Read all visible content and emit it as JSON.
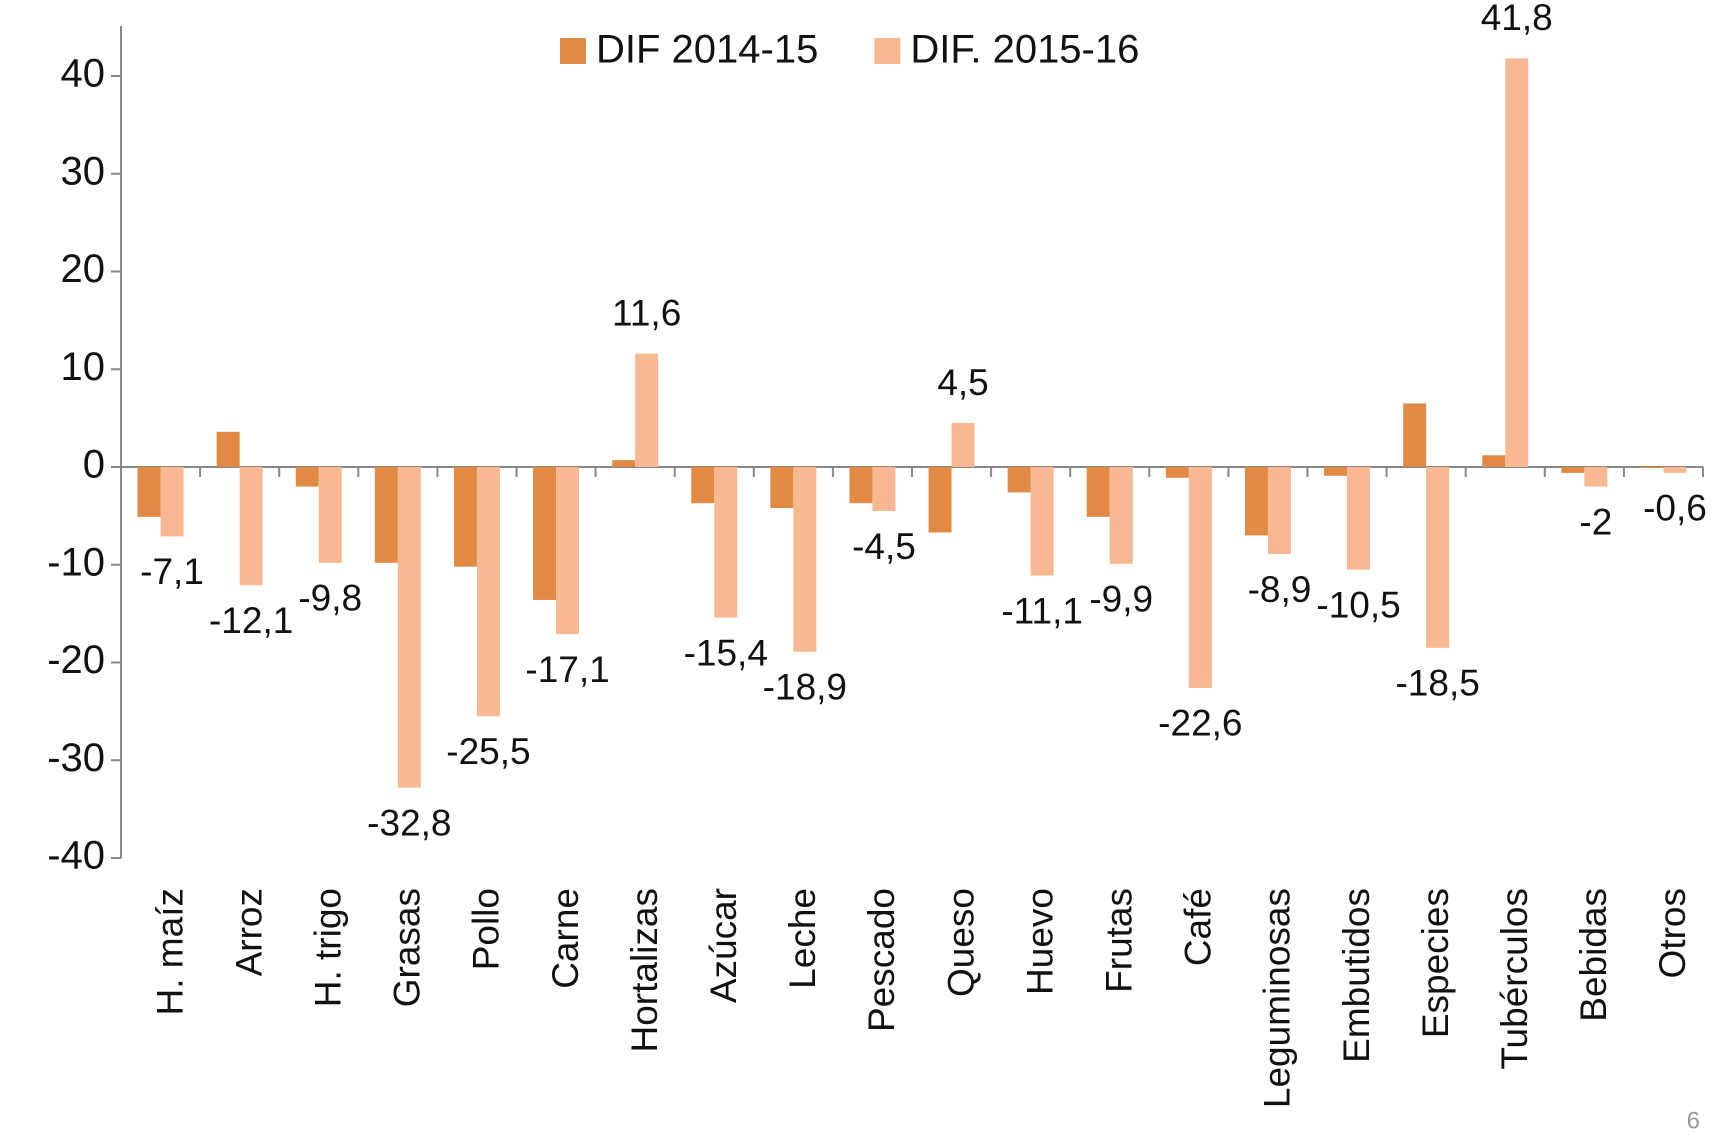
{
  "chart_data": {
    "type": "bar",
    "categories": [
      "H. maíz",
      "Arroz",
      "H. trigo",
      "Grasas",
      "Pollo",
      "Carne",
      "Hortalizas",
      "Azúcar",
      "Leche",
      "Pescado",
      "Queso",
      "Huevo",
      "Frutas",
      "Café",
      "Leguminosas",
      "Embutidos",
      "Especies",
      "Tubérculos",
      "Bebidas",
      "Otros"
    ],
    "series": [
      {
        "name": "DIF 2014-15",
        "color": "#e08a44",
        "values": [
          -5.1,
          3.6,
          -2.0,
          -9.8,
          -10.2,
          -13.6,
          0.7,
          -3.7,
          -4.2,
          -3.7,
          -6.7,
          -2.6,
          -5.1,
          -1.1,
          -7.0,
          -0.9,
          6.5,
          1.2,
          -0.6,
          -0.1
        ]
      },
      {
        "name": "DIF. 2015-16",
        "color": "#f8b892",
        "values": [
          -7.1,
          -12.1,
          -9.8,
          -32.8,
          -25.5,
          -17.1,
          11.6,
          -15.4,
          -18.9,
          -4.5,
          4.5,
          -11.1,
          -9.9,
          -22.6,
          -8.9,
          -10.5,
          -18.5,
          41.8,
          -2,
          -0.6
        ],
        "value_labels": [
          "-7,1",
          "-12,1",
          "-9,8",
          "-32,8",
          "-25,5",
          "-17,1",
          "11,6",
          "-15,4",
          "-18,9",
          "-4,5",
          "4,5",
          "-11,1",
          "-9,9",
          "-22,6",
          "-8,9",
          "-10,5",
          "-18,5",
          "41,8",
          "-2",
          "-0,6"
        ]
      }
    ],
    "ylim": [
      -40,
      40
    ],
    "yticks": [
      -40,
      -30,
      -20,
      -10,
      0,
      10,
      20,
      30,
      40
    ],
    "legend": "top",
    "grid": false
  },
  "page_number": "6"
}
